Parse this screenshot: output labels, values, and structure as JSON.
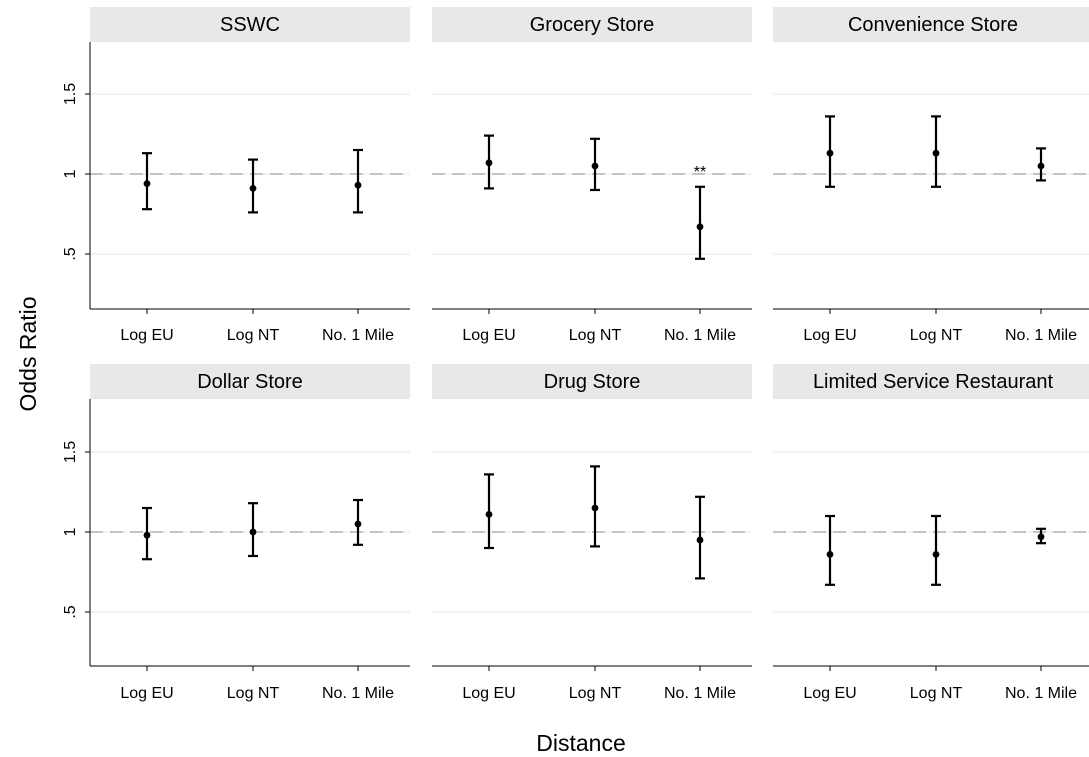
{
  "chart_data": {
    "type": "errorbar",
    "ylabel": "Odds Ratio",
    "xlabel": "Distance",
    "categories": [
      "Log EU",
      "Log NT",
      "No. 1 Mile"
    ],
    "y_ticks": [
      0.5,
      1,
      1.5
    ],
    "y_tick_labels": [
      ".5",
      "1",
      "1.5"
    ],
    "ylim": [
      0.25,
      1.82
    ],
    "reference_line": 1,
    "grid": true,
    "colors": {
      "panel_header": "#e8e8e8",
      "grid": "#eaf2f3",
      "reference": "#b3b3b3",
      "marks": "#000000"
    },
    "panels": [
      {
        "title": "SSWC",
        "points": [
          {
            "category": "Log EU",
            "estimate": 0.94,
            "lower": 0.78,
            "upper": 1.13
          },
          {
            "category": "Log NT",
            "estimate": 0.91,
            "lower": 0.76,
            "upper": 1.09
          },
          {
            "category": "No. 1 Mile",
            "estimate": 0.93,
            "lower": 0.76,
            "upper": 1.15
          }
        ]
      },
      {
        "title": "Grocery Store",
        "points": [
          {
            "category": "Log EU",
            "estimate": 1.07,
            "lower": 0.91,
            "upper": 1.24
          },
          {
            "category": "Log NT",
            "estimate": 1.05,
            "lower": 0.9,
            "upper": 1.22
          },
          {
            "category": "No. 1 Mile",
            "estimate": 0.67,
            "lower": 0.47,
            "upper": 0.92,
            "annotation": "**"
          }
        ]
      },
      {
        "title": "Convenience Store",
        "points": [
          {
            "category": "Log EU",
            "estimate": 1.13,
            "lower": 0.92,
            "upper": 1.36
          },
          {
            "category": "Log NT",
            "estimate": 1.13,
            "lower": 0.92,
            "upper": 1.36
          },
          {
            "category": "No. 1 Mile",
            "estimate": 1.05,
            "lower": 0.96,
            "upper": 1.16
          }
        ]
      },
      {
        "title": "Dollar Store",
        "points": [
          {
            "category": "Log EU",
            "estimate": 0.98,
            "lower": 0.83,
            "upper": 1.15
          },
          {
            "category": "Log NT",
            "estimate": 1.0,
            "lower": 0.85,
            "upper": 1.18
          },
          {
            "category": "No. 1 Mile",
            "estimate": 1.05,
            "lower": 0.92,
            "upper": 1.2
          }
        ]
      },
      {
        "title": "Drug Store",
        "points": [
          {
            "category": "Log EU",
            "estimate": 1.11,
            "lower": 0.9,
            "upper": 1.36
          },
          {
            "category": "Log NT",
            "estimate": 1.15,
            "lower": 0.91,
            "upper": 1.41
          },
          {
            "category": "No. 1 Mile",
            "estimate": 0.95,
            "lower": 0.71,
            "upper": 1.22
          }
        ]
      },
      {
        "title": "Limited Service Restaurant",
        "points": [
          {
            "category": "Log EU",
            "estimate": 0.86,
            "lower": 0.67,
            "upper": 1.1
          },
          {
            "category": "Log NT",
            "estimate": 0.86,
            "lower": 0.67,
            "upper": 1.1
          },
          {
            "category": "No. 1 Mile",
            "estimate": 0.97,
            "lower": 0.93,
            "upper": 1.02
          }
        ]
      }
    ]
  }
}
